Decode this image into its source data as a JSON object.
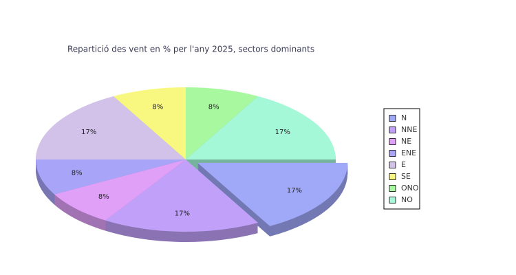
{
  "chart_data": {
    "type": "pie",
    "title": "Repartició des vent en % per l'any 2025, sectors dominants",
    "categories": [
      "N",
      "NNE",
      "NE",
      "ENE",
      "E",
      "SE",
      "ONO",
      "NO"
    ],
    "values": [
      17,
      17,
      8,
      8,
      17,
      8,
      8,
      17
    ],
    "value_labels": [
      "17%",
      "17%",
      "8%",
      "8%",
      "17%",
      "8%",
      "8%",
      "17%"
    ],
    "colors": [
      "#a0a8f8",
      "#c0a0f8",
      "#e0a0f8",
      "#a8a4f8",
      "#d2c2ea",
      "#f8f880",
      "#a8f8a0",
      "#a4f8d8"
    ],
    "exploded": [
      0
    ],
    "legend": "right"
  }
}
